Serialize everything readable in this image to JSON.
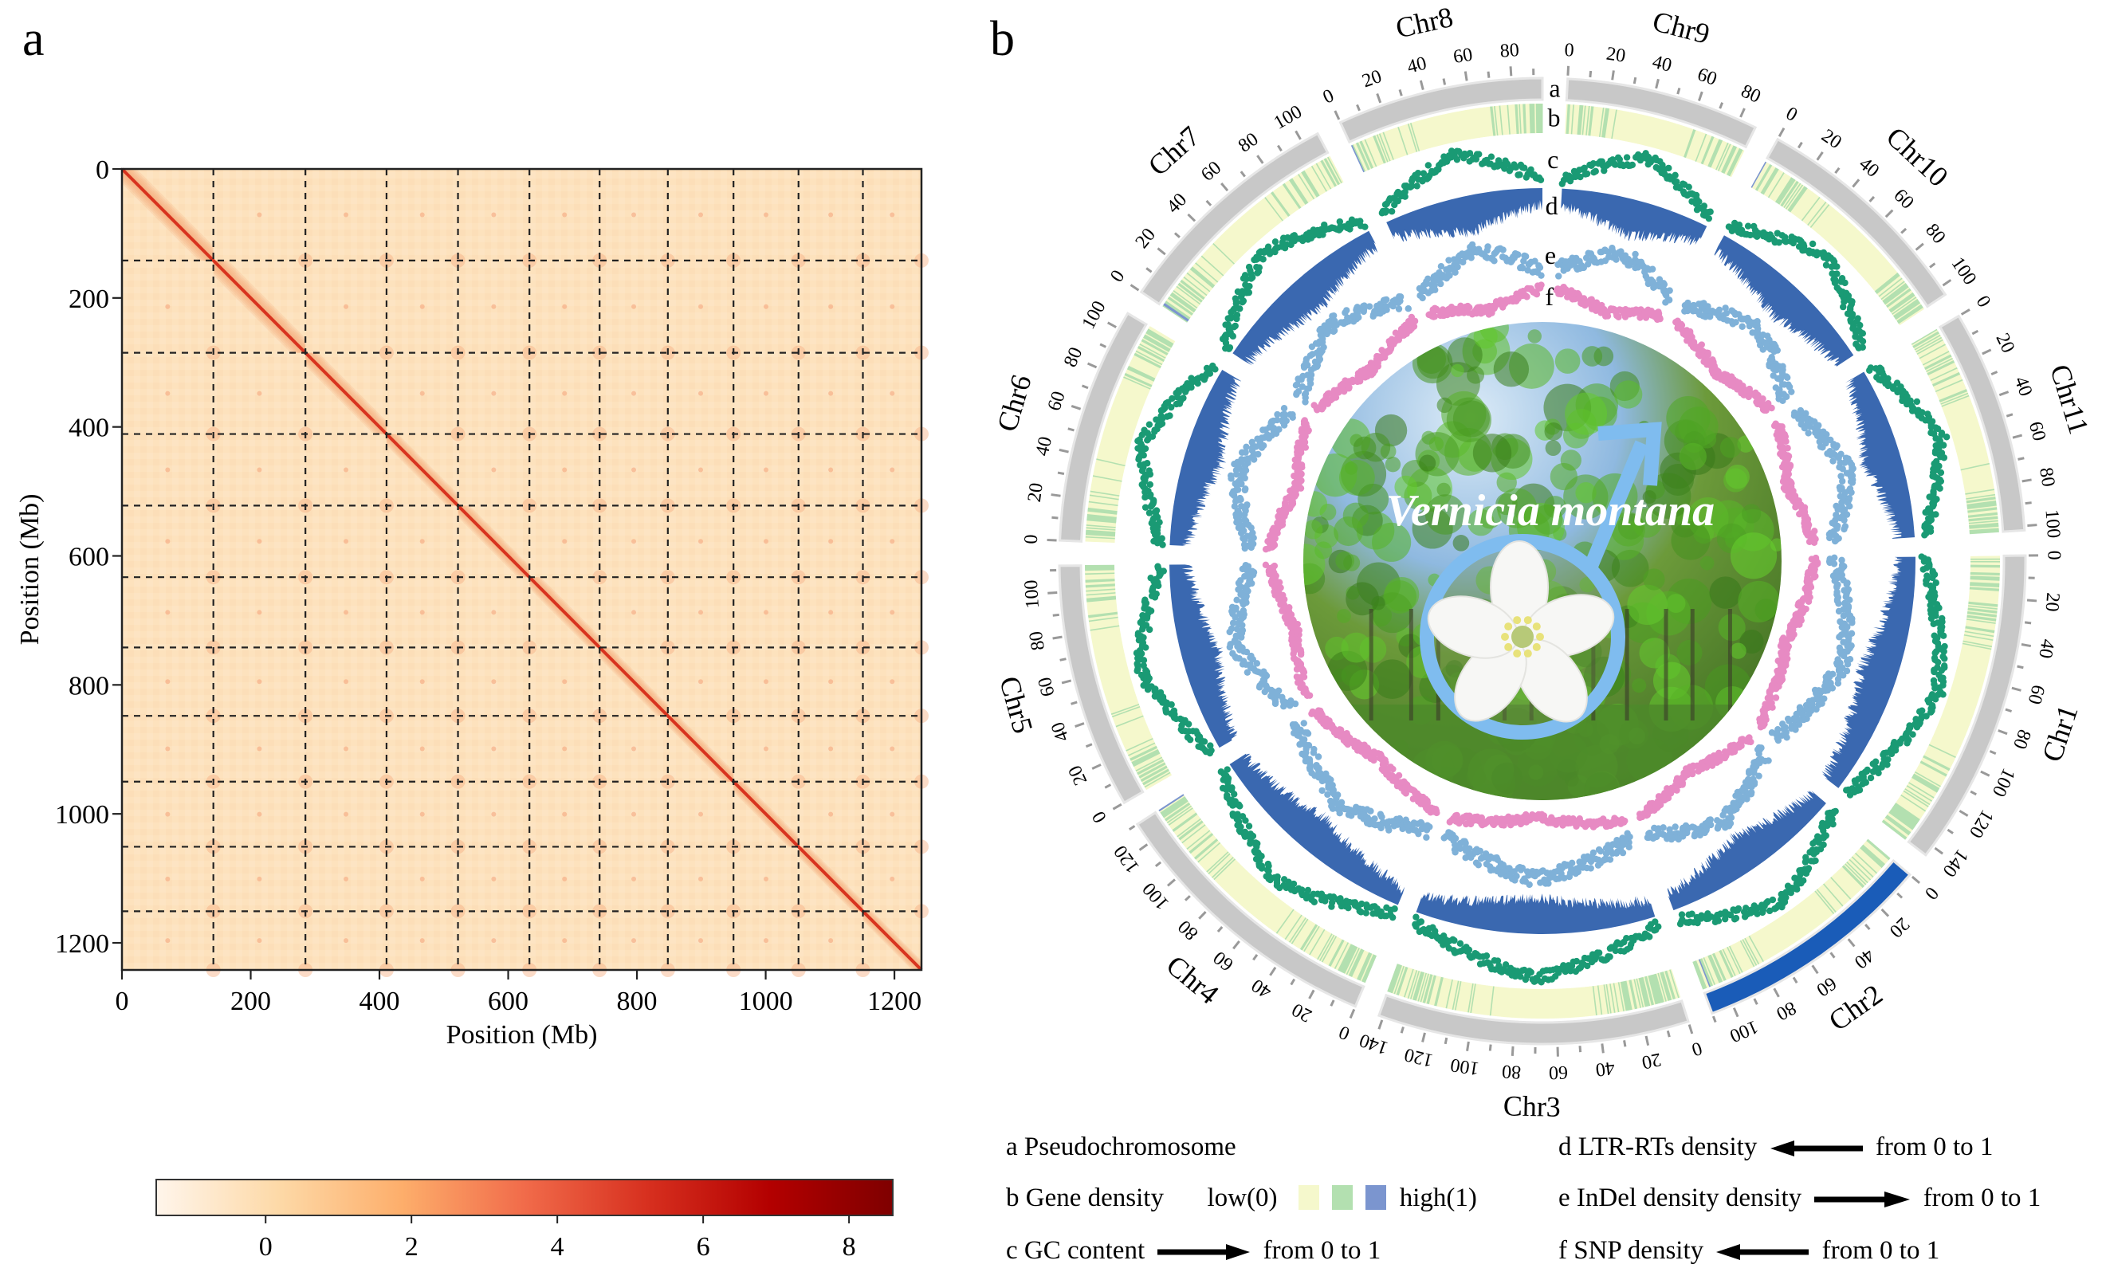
{
  "figure": {
    "panel_a_label": "a",
    "panel_b_label": "b"
  },
  "chart_data": [
    {
      "type": "heatmap",
      "title": "",
      "xlabel": "Position (Mb)",
      "ylabel": "Position (Mb)",
      "xlim": [
        0,
        1242
      ],
      "ylim": [
        0,
        1242
      ],
      "x_ticks": [
        0,
        200,
        400,
        600,
        800,
        1000,
        1200
      ],
      "y_ticks": [
        0,
        200,
        400,
        600,
        800,
        1000,
        1200
      ],
      "x_tick_labels": [
        "0",
        "200",
        "400",
        "600",
        "800",
        "1000",
        "1200"
      ],
      "y_tick_labels": [
        "0",
        "200",
        "400",
        "600",
        "800",
        "1000",
        "1200"
      ],
      "chromosome_boundaries_mb": [
        142,
        285,
        411,
        522,
        633,
        742,
        848,
        950,
        1051,
        1151
      ],
      "grid": "dashed chromosome boundaries",
      "colorbar": {
        "ticks": [
          0,
          2,
          4,
          6,
          8
        ],
        "tick_labels": [
          "0",
          "2",
          "4",
          "6",
          "8"
        ],
        "range": [
          -1.5,
          8.6
        ],
        "colormap": [
          "#fff5eb",
          "#fdd9a7",
          "#fdae6b",
          "#f16b4a",
          "#d7301f",
          "#b30000",
          "#7f0000"
        ]
      },
      "colors": {
        "background": "#fde3c0",
        "diagonal": "#d8331f",
        "boundary_line": "#222222"
      }
    },
    {
      "type": "circos",
      "title": "Vernicia montana",
      "chromosomes": [
        {
          "name": "Chr9",
          "length": 88,
          "ticks": [
            "0",
            "20",
            "40",
            "60",
            "80"
          ]
        },
        {
          "name": "Chr10",
          "length": 104,
          "ticks": [
            "0",
            "20",
            "40",
            "60",
            "80",
            "100"
          ]
        },
        {
          "name": "Chr11",
          "length": 102,
          "ticks": [
            "0",
            "20",
            "40",
            "60",
            "80",
            "100"
          ]
        },
        {
          "name": "Chr1",
          "length": 145,
          "ticks": [
            "0",
            "20",
            "40",
            "60",
            "80",
            "100",
            "120",
            "140"
          ]
        },
        {
          "name": "Chr2",
          "length": 110,
          "ticks": [
            "0",
            "20",
            "40",
            "60",
            "80",
            "100"
          ],
          "highlight": true
        },
        {
          "name": "Chr3",
          "length": 142,
          "ticks": [
            "0",
            "20",
            "40",
            "60",
            "80",
            "100",
            "120",
            "140"
          ]
        },
        {
          "name": "Chr4",
          "length": 130,
          "ticks": [
            "0",
            "20",
            "40",
            "60",
            "80",
            "100",
            "120"
          ]
        },
        {
          "name": "Chr5",
          "length": 112,
          "ticks": [
            "0",
            "20",
            "40",
            "60",
            "80",
            "100"
          ]
        },
        {
          "name": "Chr6",
          "length": 108,
          "ticks": [
            "0",
            "20",
            "40",
            "60",
            "80",
            "100"
          ]
        },
        {
          "name": "Chr7",
          "length": 108,
          "ticks": [
            "0",
            "20",
            "40",
            "60",
            "80",
            "100"
          ]
        },
        {
          "name": "Chr8",
          "length": 94,
          "ticks": [
            "0",
            "20",
            "40",
            "60",
            "80"
          ]
        }
      ],
      "track_labels": [
        "a",
        "b",
        "c",
        "d",
        "e",
        "f"
      ],
      "tracks": [
        {
          "id": "a",
          "name": "Pseudochromosome",
          "color": "#c8c8c8",
          "highlight_color": "#1a5cb8"
        },
        {
          "id": "b",
          "name": "Gene density",
          "colors": [
            "#f5f8cc",
            "#b3e0b0",
            "#7b95cf"
          ]
        },
        {
          "id": "c",
          "name": "GC content",
          "color": "#1a9a74"
        },
        {
          "id": "d",
          "name": "LTR-RTs density",
          "color": "#3a68b0"
        },
        {
          "id": "e",
          "name": "InDel density",
          "color": "#7fb1d8"
        },
        {
          "id": "f",
          "name": "SNP density",
          "color": "#e78ac3"
        }
      ],
      "center_title": "Vernicia montana",
      "male_symbol_color": "#7fbcef"
    }
  ],
  "legend": {
    "a": {
      "label": "a Pseudochromosome"
    },
    "b": {
      "label": "b Gene density",
      "low": "low(0)",
      "high": "high(1)",
      "swatches": [
        "#f5f8cc",
        "#b3e0b0",
        "#7b95cf"
      ]
    },
    "c": {
      "label": "c GC content",
      "range": "from 0 to 1",
      "direction": "right"
    },
    "d": {
      "label": "d LTR-RTs  density",
      "range": "from 0 to 1",
      "direction": "left"
    },
    "e": {
      "label": "e InDel density  density",
      "range": "from 0 to 1",
      "direction": "right"
    },
    "f": {
      "label": "f SNP density",
      "range": "from 0 to 1",
      "direction": "left"
    }
  }
}
